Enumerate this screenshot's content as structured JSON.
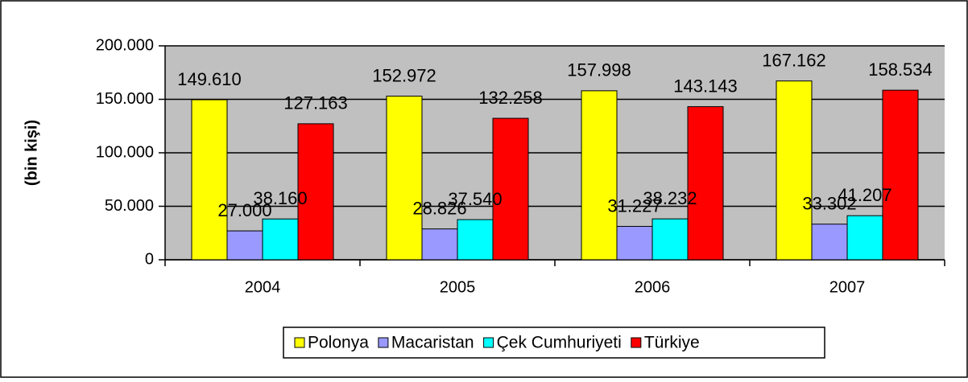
{
  "chart_data": {
    "type": "bar",
    "y_label": "(bin kişi)",
    "categories": [
      "2004",
      "2005",
      "2006",
      "2007"
    ],
    "series": [
      {
        "name": "Polonya",
        "color": "#ffff00",
        "values": [
          149610,
          152972,
          157998,
          167162
        ],
        "value_labels": [
          "149.610",
          "152.972",
          "157.998",
          "167.162"
        ]
      },
      {
        "name": "Macaristan",
        "color": "#9999ff",
        "values": [
          27000,
          28826,
          31227,
          33302
        ],
        "value_labels": [
          "27.000",
          "28.826",
          "31.227",
          "33.302"
        ]
      },
      {
        "name": "Çek Cumhuriyeti",
        "color": "#00ffff",
        "values": [
          38160,
          37540,
          38232,
          41207
        ],
        "value_labels": [
          "38.160",
          "37.540",
          "38.232",
          "41.207"
        ]
      },
      {
        "name": "Türkiye",
        "color": "#ff0000",
        "values": [
          127163,
          132258,
          143143,
          158534
        ],
        "value_labels": [
          "127.163",
          "132.258",
          "143.143",
          "158.534"
        ]
      }
    ],
    "ylim": [
      0,
      200000
    ],
    "yticks": [
      0,
      {
        "value": 50000,
        "label": "50.000"
      },
      {
        "value": 100000,
        "label": "100.000"
      },
      {
        "value": 150000,
        "label": "150.000"
      },
      {
        "value": 200000,
        "label": "200.000"
      }
    ],
    "grid": true,
    "plot_background": "#c0c0c0",
    "legend": "bottom"
  }
}
